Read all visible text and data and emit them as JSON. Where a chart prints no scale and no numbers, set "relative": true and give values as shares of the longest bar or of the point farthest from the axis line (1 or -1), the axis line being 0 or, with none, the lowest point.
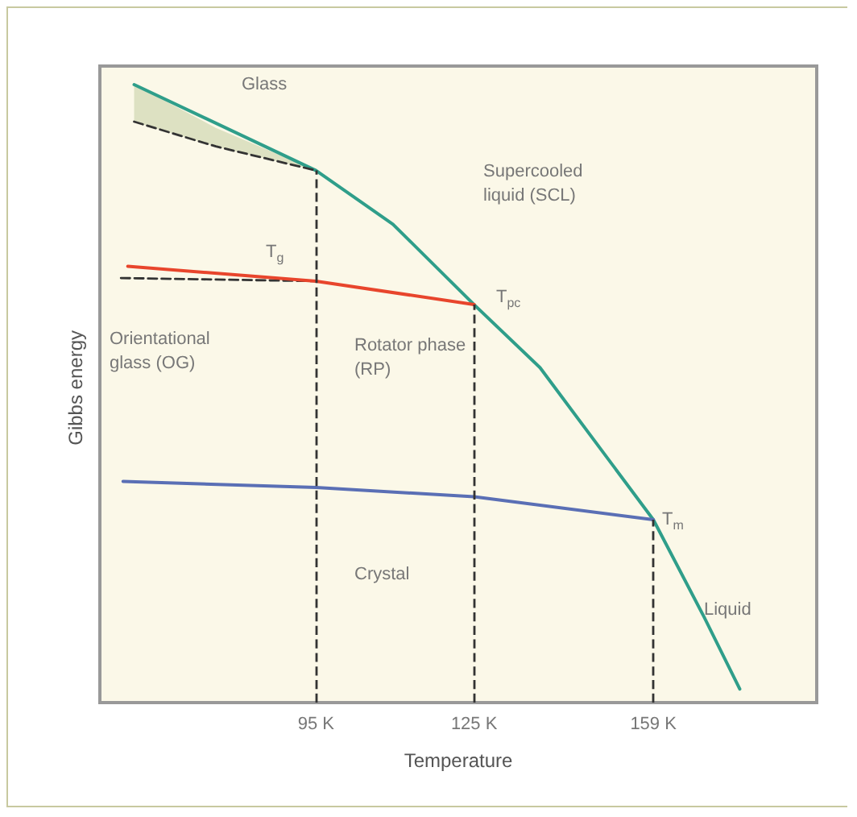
{
  "chart_data": {
    "type": "line",
    "xlabel": "Temperature",
    "ylabel": "Gibbs energy",
    "relative": true,
    "grid": false,
    "marker": "none",
    "tick_labels": "x",
    "xlim": [
      54,
      190
    ],
    "xticks": [
      {
        "value": 95,
        "label": "95 K"
      },
      {
        "value": 125,
        "label": "125 K"
      },
      {
        "value": 159,
        "label": "159 K"
      }
    ],
    "series": [
      {
        "color": "#2f9e8a",
        "x": [
          60.5,
          95,
          109.6,
          125,
          137.5,
          159,
          168.6,
          175.4
        ],
        "values": [
          1,
          0.861,
          0.774,
          0.644,
          0.542,
          0.296,
          0.139,
          0.022
        ]
      },
      {
        "color": "#333333",
        "line_style": "dashed",
        "x": [
          60.5,
          76,
          95
        ],
        "values": [
          0.94,
          0.9,
          0.861
        ],
        "lower": [
          0.94,
          0.9,
          0.861
        ],
        "upper": [
          1,
          0.93,
          0.861
        ]
      },
      {
        "color": "#333333",
        "line_style": "dashed",
        "x": [
          58,
          95
        ],
        "values": [
          0.687,
          0.682
        ]
      },
      {
        "color": "#e8452c",
        "x": [
          59.3,
          95,
          125
        ],
        "values": [
          0.706,
          0.682,
          0.644
        ]
      },
      {
        "color": "#5a6fb5",
        "x": [
          58.4,
          95,
          125,
          159
        ],
        "values": [
          0.358,
          0.348,
          0.333,
          0.296
        ]
      }
    ],
    "ref_lines": [
      {
        "axis": "x",
        "value": 95,
        "color": "#333333",
        "line_style": "dashed"
      },
      {
        "axis": "x",
        "value": 125,
        "color": "#333333",
        "line_style": "dashed"
      },
      {
        "axis": "x",
        "value": 159,
        "color": "#333333",
        "line_style": "dashed"
      }
    ],
    "annotations": [
      "Glass",
      "Supercooled liquid (SCL)",
      "T$_{g}$",
      "T$_{pc}$",
      "Orientational glass (OG)",
      "Rotator phase (RP)",
      "Crystal",
      "T$_{m}$",
      "Liquid"
    ]
  }
}
